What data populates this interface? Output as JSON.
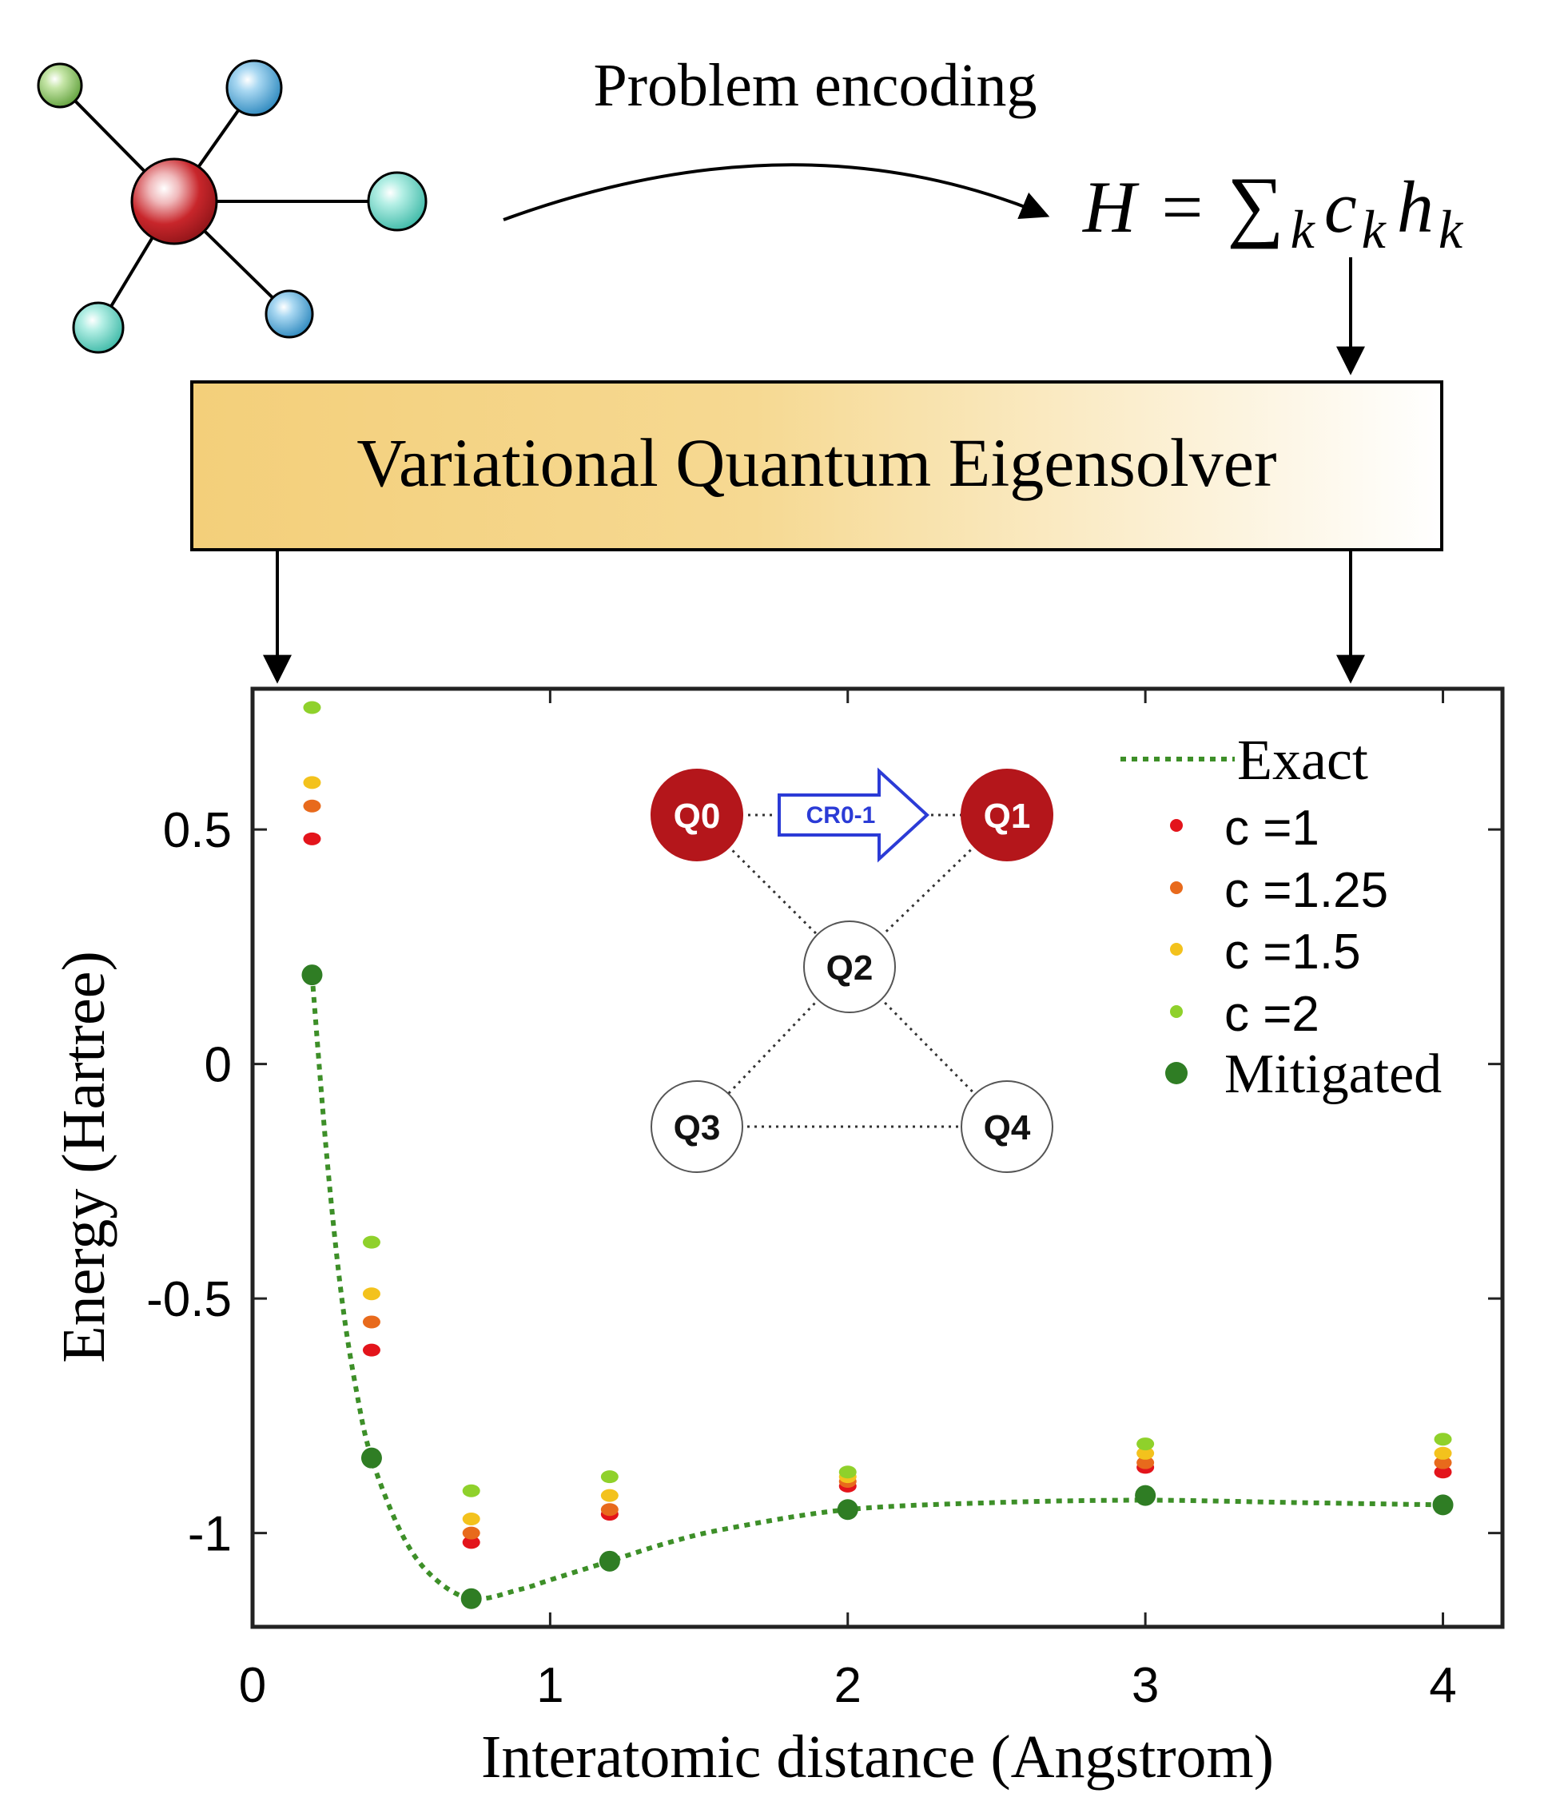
{
  "header": {
    "encoding_label": "Problem encoding",
    "hamiltonian": "H = ∑k ck hk",
    "ham_parts": {
      "lhs": "H",
      "eq": "=",
      "sum": "∑",
      "sub": "k",
      "c": "c",
      "c_sub": "k",
      "h": "h",
      "h_sub": "k"
    }
  },
  "molecule": {
    "center_color": "#c8262b",
    "atoms": [
      {
        "color": "#86c25a"
      },
      {
        "color": "#3fa4d8"
      },
      {
        "color": "#5ed6c4"
      },
      {
        "color": "#5ed6c4"
      },
      {
        "color": "#3fa4d8"
      }
    ]
  },
  "vqe_box": {
    "label": "Variational Quantum Eigensolver",
    "gradient_start": "#f3cf7a",
    "gradient_end": "#ffffff"
  },
  "qubit_diagram": {
    "active_color": "#b4161b",
    "gate_label": "CR0-1",
    "gate_color": "#2b3bd6",
    "qubits": [
      {
        "id": "Q0",
        "label": "Q0",
        "active": true
      },
      {
        "id": "Q1",
        "label": "Q1",
        "active": true
      },
      {
        "id": "Q2",
        "label": "Q2",
        "active": false
      },
      {
        "id": "Q3",
        "label": "Q3",
        "active": false
      },
      {
        "id": "Q4",
        "label": "Q4",
        "active": false
      }
    ],
    "couplings": [
      [
        "Q0",
        "Q1"
      ],
      [
        "Q0",
        "Q2"
      ],
      [
        "Q1",
        "Q2"
      ],
      [
        "Q2",
        "Q3"
      ],
      [
        "Q2",
        "Q4"
      ],
      [
        "Q3",
        "Q4"
      ]
    ]
  },
  "chart_data": {
    "type": "scatter",
    "xlabel": "Interatomic distance (Angstrom)",
    "ylabel": "Energy (Hartree)",
    "xlim": [
      0,
      4.2
    ],
    "ylim": [
      -1.2,
      0.8
    ],
    "xticks": [
      0,
      1,
      2,
      3,
      4
    ],
    "xtick_labels": [
      "0",
      "1",
      "2",
      "3",
      "4"
    ],
    "yticks": [
      0.5,
      0,
      -0.5,
      -1
    ],
    "ytick_labels": [
      "0.5",
      "0",
      "-0.5",
      "-1"
    ],
    "legend_position": "top-right",
    "x": [
      0.2,
      0.4,
      0.735,
      1.2,
      2.0,
      3.0,
      4.0
    ],
    "series": [
      {
        "name": "c =1",
        "color": "#e3141b",
        "values": [
          0.48,
          -0.61,
          -1.02,
          -0.96,
          -0.9,
          -0.86,
          -0.87
        ]
      },
      {
        "name": "c =1.25",
        "color": "#e86a1c",
        "values": [
          0.55,
          -0.55,
          -1.0,
          -0.95,
          -0.89,
          -0.85,
          -0.85
        ]
      },
      {
        "name": "c =1.5",
        "color": "#f3c21d",
        "values": [
          0.6,
          -0.49,
          -0.97,
          -0.92,
          -0.88,
          -0.83,
          -0.83
        ]
      },
      {
        "name": "c =2",
        "color": "#8fd12b",
        "values": [
          0.76,
          -0.38,
          -0.91,
          -0.88,
          -0.87,
          -0.81,
          -0.8
        ]
      },
      {
        "name": "Mitigated",
        "color": "#2f7d24",
        "values": [
          0.19,
          -0.84,
          -1.14,
          -1.06,
          -0.95,
          -0.92,
          -0.94
        ]
      }
    ],
    "exact": {
      "name": "Exact",
      "color": "#3d8f28",
      "x": [
        0.2,
        0.25,
        0.3,
        0.35,
        0.4,
        0.5,
        0.6,
        0.735,
        0.9,
        1.0,
        1.2,
        1.4,
        1.6,
        2.0,
        2.5,
        3.0,
        3.5,
        4.0
      ],
      "y": [
        0.19,
        -0.2,
        -0.5,
        -0.7,
        -0.84,
        -1.0,
        -1.09,
        -1.14,
        -1.12,
        -1.1,
        -1.06,
        -1.02,
        -0.99,
        -0.95,
        -0.935,
        -0.93,
        -0.935,
        -0.94
      ]
    }
  }
}
